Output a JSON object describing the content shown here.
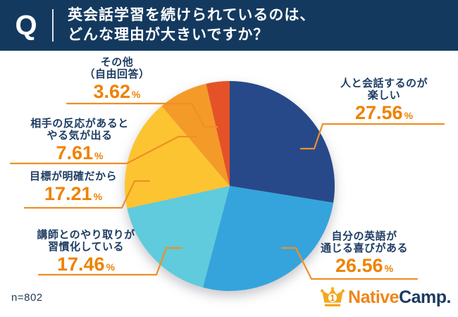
{
  "header": {
    "q_label": "Q",
    "question_line1": "英会話学習を続けられているのは、",
    "question_line2": "どんな理由が大きいですか？"
  },
  "footer": {
    "sample_size": "n=802",
    "logo": {
      "crown_icon": "crown-number-1-icon",
      "crown_number": "1",
      "brand_first": "Native",
      "brand_second": "Camp."
    }
  },
  "colors": {
    "header_bg": "#14395f",
    "question_text": "#ffffff",
    "label_text": "#1e3d63",
    "percent_text": "#ef8200",
    "leader_line": "#ee8f27",
    "logo_orange": "#f08519",
    "logo_navy": "#1c3a5f",
    "crown_gold": "#f3a81b"
  },
  "chart_data": {
    "type": "pie",
    "title": "英会話学習を続けられているのは、どんな理由が大きいですか？",
    "unit": "%",
    "percent_sign": "%",
    "start_angle_deg": 0,
    "direction": "clockwise",
    "sample_size_label": "n=802",
    "segments": [
      {
        "label": "人と会話するのが楽しい",
        "label_lines": [
          "人と会話するのが",
          "楽しい"
        ],
        "value": 27.56,
        "value_text": "27.56",
        "color": "#27498a"
      },
      {
        "label": "自分の英語が通じる喜びがある",
        "label_lines": [
          "自分の英語が",
          "通じる喜びがある"
        ],
        "value": 26.56,
        "value_text": "26.56",
        "color": "#35a4dc"
      },
      {
        "label": "講師とのやり取りが習慣化している",
        "label_lines": [
          "講師とのやり取りが",
          "習慣化している"
        ],
        "value": 17.46,
        "value_text": "17.46",
        "color": "#5fcbdc"
      },
      {
        "label": "目標が明確だから",
        "label_lines": [
          "目標が明確だから"
        ],
        "value": 17.21,
        "value_text": "17.21",
        "color": "#fdc431"
      },
      {
        "label": "相手の反応があるとやる気が出る",
        "label_lines": [
          "相手の反応があると",
          "やる気が出る"
        ],
        "value": 7.61,
        "value_text": "7.61",
        "color": "#f49a29"
      },
      {
        "label": "その他（自由回答）",
        "label_lines": [
          "その他",
          "（自由回答）"
        ],
        "value": 3.62,
        "value_text": "3.62",
        "color": "#e55227"
      }
    ]
  }
}
